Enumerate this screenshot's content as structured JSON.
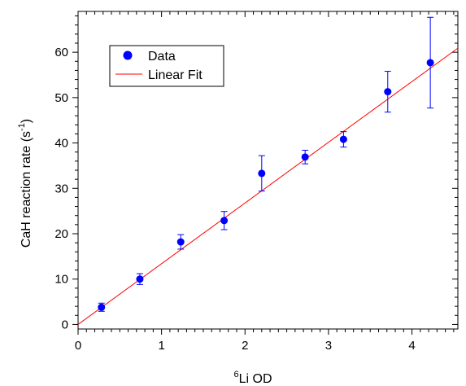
{
  "chart_data": {
    "type": "scatter",
    "xlabel_prefix_sup": "6",
    "xlabel": "Li OD",
    "ylabel": "CaH reaction rate (s",
    "ylabel_sup": "-1",
    "ylabel_suffix": ")",
    "xlim": [
      0,
      4.55
    ],
    "ylim": [
      -1,
      69
    ],
    "xticks": [
      0,
      1,
      2,
      3,
      4
    ],
    "yticks": [
      0,
      10,
      20,
      30,
      40,
      50,
      60
    ],
    "x_tick_labels": [
      "0",
      "1",
      "2",
      "3",
      "4"
    ],
    "y_tick_labels": [
      "0",
      "10",
      "20",
      "30",
      "40",
      "50",
      "60"
    ],
    "legend": {
      "position": "top-left",
      "entries": [
        {
          "label": "Data",
          "kind": "marker"
        },
        {
          "label": "Linear Fit",
          "kind": "line"
        }
      ]
    },
    "series": [
      {
        "name": "Data",
        "color": "#0000ff",
        "points": [
          {
            "x": 0.28,
            "y": 3.8,
            "err": 0.9
          },
          {
            "x": 0.74,
            "y": 10.0,
            "err": 1.2
          },
          {
            "x": 1.23,
            "y": 18.2,
            "err": 1.6
          },
          {
            "x": 1.75,
            "y": 22.9,
            "err": 2.0
          },
          {
            "x": 2.2,
            "y": 33.3,
            "err": 3.9
          },
          {
            "x": 2.72,
            "y": 36.9,
            "err": 1.5
          },
          {
            "x": 3.18,
            "y": 40.8,
            "err": 1.7
          },
          {
            "x": 3.71,
            "y": 51.3,
            "err": 4.5
          },
          {
            "x": 4.22,
            "y": 57.7,
            "err": 10.0
          }
        ]
      },
      {
        "name": "Linear Fit",
        "color": "#ff0000",
        "line": {
          "x0": 0,
          "y0": 0,
          "x1": 4.55,
          "y1": 60.9
        }
      }
    ]
  }
}
